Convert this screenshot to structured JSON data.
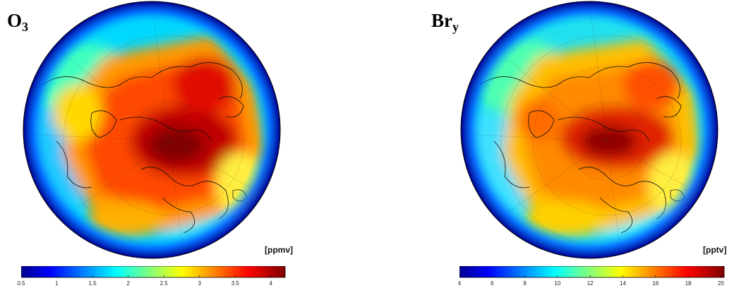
{
  "panels": [
    {
      "title_main": "O",
      "title_sub": "3",
      "unit": "[ppmv]",
      "colorbar": {
        "min": 0.5,
        "max": 4.2,
        "ticks": [
          "0.5",
          "1",
          "1.5",
          "2",
          "2.5",
          "3",
          "3.5",
          "4"
        ],
        "tick_values": [
          0.5,
          1,
          1.5,
          2,
          2.5,
          3,
          3.5,
          4
        ]
      }
    },
    {
      "title_main": "Br",
      "title_sub": "y",
      "unit": "[pptv]",
      "colorbar": {
        "min": 4,
        "max": 20.2,
        "ticks": [
          "4",
          "6",
          "8",
          "10",
          "12",
          "14",
          "16",
          "18",
          "20"
        ],
        "tick_values": [
          4,
          6,
          8,
          10,
          12,
          14,
          16,
          18,
          20
        ]
      }
    }
  ],
  "colormap": "jet",
  "projection": "orthographic north-polar",
  "colors": {
    "dark_blue": "#00008f",
    "blue": "#0050ff",
    "cyan": "#00e0ff",
    "yellow": "#ffe600",
    "orange": "#ff7a00",
    "red": "#e01000",
    "dark_red": "#800000"
  }
}
